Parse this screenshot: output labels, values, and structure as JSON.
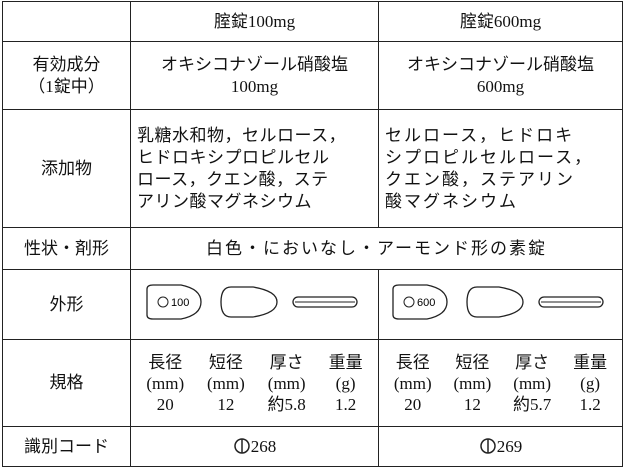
{
  "table": {
    "columns": [
      "腟錠100mg",
      "腟錠600mg"
    ],
    "rows": [
      {
        "label": [
          "有効成分",
          "（1錠中）"
        ],
        "cells": [
          [
            "オキシコナゾール硝酸塩",
            "100mg"
          ],
          [
            "オキシコナゾール硝酸塩",
            "600mg"
          ]
        ]
      },
      {
        "label": [
          "添加物"
        ],
        "cells": [
          [
            "乳糖水和物，セルロース，",
            "ヒドロキシプロピルセル",
            "ロース，クエン酸，ステ",
            "アリン酸マグネシウム"
          ],
          [
            "セルロース，ヒドロキ",
            "シプロピルセルロース，",
            "クエン酸，ステアリン",
            "酸マグネシウム"
          ]
        ]
      },
      {
        "label": [
          "性状・剤形"
        ],
        "merged": "白色・においなし・アーモンド形の素錠"
      },
      {
        "label": [
          "外形"
        ],
        "imprints": [
          "100",
          "600"
        ]
      },
      {
        "label": [
          "規格"
        ],
        "spec_headers": [
          "長径",
          "短径",
          "厚さ",
          "重量"
        ],
        "spec_units": [
          "(mm)",
          "(mm)",
          "(mm)",
          "(g)"
        ],
        "spec_values": [
          [
            "20",
            "12",
            "約5.8",
            "1.2"
          ],
          [
            "20",
            "12",
            "約5.7",
            "1.2"
          ]
        ]
      },
      {
        "label": [
          "識別コード"
        ],
        "codes": [
          "268",
          "269"
        ]
      }
    ]
  }
}
